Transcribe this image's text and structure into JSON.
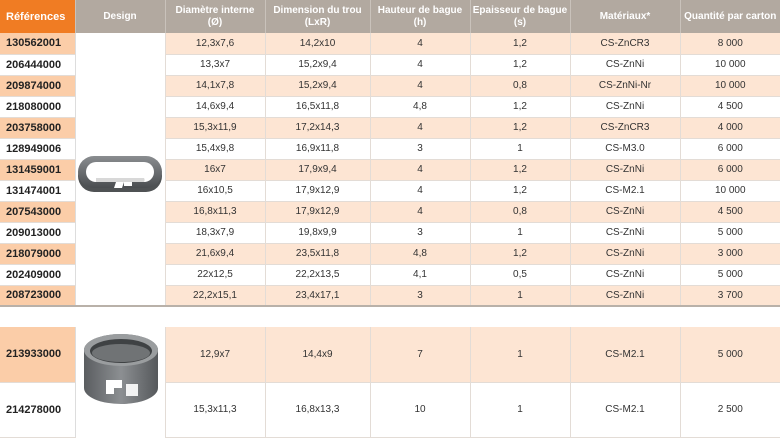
{
  "headers": {
    "reference": "Références",
    "design": "Design",
    "inner_diameter": "Diamètre interne",
    "inner_diameter_unit": "(Ø)",
    "hole": "Dimension du trou",
    "hole_unit": "(LxR)",
    "ring_height": "Hauteur de bague",
    "ring_height_unit": "(h)",
    "thickness": "Epaisseur de bague",
    "thickness_unit": "(s)",
    "material": "Matériaux*",
    "qty": "Quantité par carton"
  },
  "rows": [
    {
      "ref": "130562001",
      "d": "12,3x7,6",
      "l": "14,2x10",
      "h": "4",
      "s": "1,2",
      "m": "CS-ZnCR3",
      "q": "8 000"
    },
    {
      "ref": "206444000",
      "d": "13,3x7",
      "l": "15,2x9,4",
      "h": "4",
      "s": "1,2",
      "m": "CS-ZnNi",
      "q": "10 000"
    },
    {
      "ref": "209874000",
      "d": "14,1x7,8",
      "l": "15,2x9,4",
      "h": "4",
      "s": "0,8",
      "m": "CS-ZnNi-Nr",
      "q": "10 000"
    },
    {
      "ref": "218080000",
      "d": "14,6x9,4",
      "l": "16,5x11,8",
      "h": "4,8",
      "s": "1,2",
      "m": "CS-ZnNi",
      "q": "4 500"
    },
    {
      "ref": "203758000",
      "d": "15,3x11,9",
      "l": "17,2x14,3",
      "h": "4",
      "s": "1,2",
      "m": "CS-ZnCR3",
      "q": "4 000"
    },
    {
      "ref": "128949006",
      "d": "15,4x9,8",
      "l": "16,9x11,8",
      "h": "3",
      "s": "1",
      "m": "CS-M3.0",
      "q": "6 000"
    },
    {
      "ref": "131459001",
      "d": "16x7",
      "l": "17,9x9,4",
      "h": "4",
      "s": "1,2",
      "m": "CS-ZnNi",
      "q": "6 000"
    },
    {
      "ref": "131474001",
      "d": "16x10,5",
      "l": "17,9x12,9",
      "h": "4",
      "s": "1,2",
      "m": "CS-M2.1",
      "q": "10 000"
    },
    {
      "ref": "207543000",
      "d": "16,8x11,3",
      "l": "17,9x12,9",
      "h": "4",
      "s": "0,8",
      "m": "CS-ZnNi",
      "q": "4 500"
    },
    {
      "ref": "209013000",
      "d": "18,3x7,9",
      "l": "19,8x9,9",
      "h": "3",
      "s": "1",
      "m": "CS-ZnNi",
      "q": "5 000"
    },
    {
      "ref": "218079000",
      "d": "21,6x9,4",
      "l": "23,5x11,8",
      "h": "4,8",
      "s": "1,2",
      "m": "CS-ZnNi",
      "q": "3 000"
    },
    {
      "ref": "202409000",
      "d": "22x12,5",
      "l": "22,2x13,5",
      "h": "4,1",
      "s": "0,5",
      "m": "CS-ZnNi",
      "q": "5 000"
    },
    {
      "ref": "208723000",
      "d": "22,2x15,1",
      "l": "23,4x17,1",
      "h": "3",
      "s": "1",
      "m": "CS-ZnNi",
      "q": "3 700"
    },
    {
      "ref": "213933000",
      "d": "12,9x7",
      "l": "14,4x9",
      "h": "7",
      "s": "1",
      "m": "CS-M2.1",
      "q": "5 000"
    },
    {
      "ref": "214278000",
      "d": "15,3x11,3",
      "l": "16,8x13,3",
      "h": "10",
      "s": "1",
      "m": "CS-M2.1",
      "q": "2 500"
    }
  ],
  "images": {
    "flat_ring": "flat-oval-clip-ring-icon",
    "tall_ring": "tall-oval-clip-ring-icon"
  },
  "colors": {
    "header": "#b2a9a0",
    "ref_header": "#f07c23",
    "highlight": "#fde5d3",
    "ref_highlight": "#fbcda8"
  }
}
